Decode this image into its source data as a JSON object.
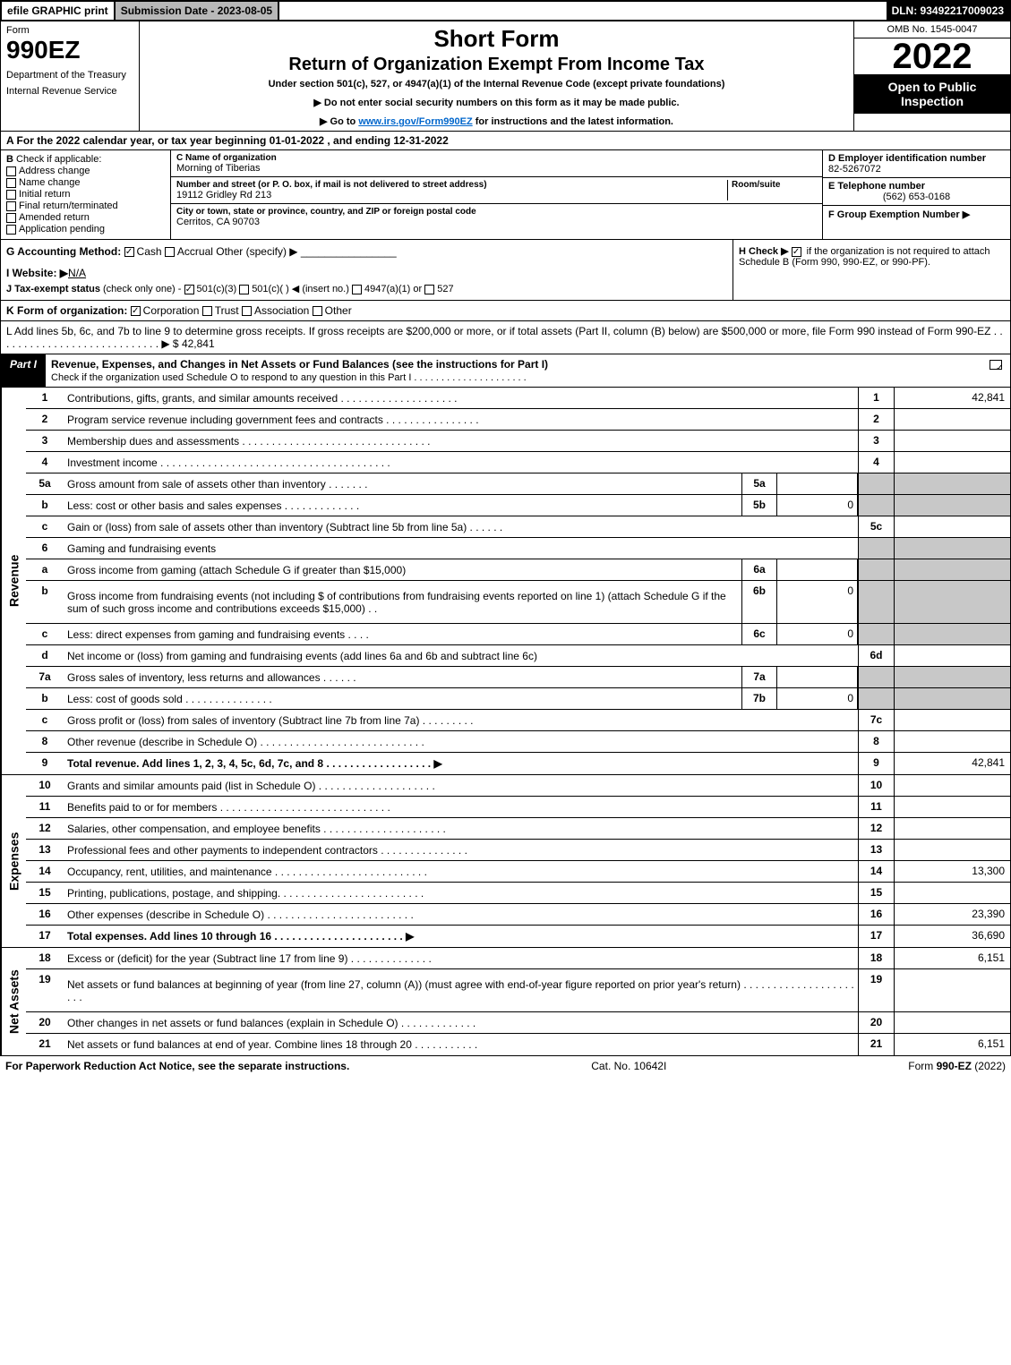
{
  "top": {
    "efile": "efile GRAPHIC print",
    "sub": "Submission Date - 2023-08-05",
    "dln": "DLN: 93492217009023"
  },
  "hdr": {
    "form": "Form",
    "num": "990EZ",
    "dept": "Department of the Treasury",
    "irs": "Internal Revenue Service",
    "title": "Short Form",
    "sub": "Return of Organization Exempt From Income Tax",
    "under": "Under section 501(c), 527, or 4947(a)(1) of the Internal Revenue Code (except private foundations)",
    "note1": "▶ Do not enter social security numbers on this form as it may be made public.",
    "note2": "▶ Go to ",
    "note2link": "www.irs.gov/Form990EZ",
    "note2b": " for instructions and the latest information.",
    "omb": "OMB No. 1545-0047",
    "year": "2022",
    "open": "Open to Public Inspection"
  },
  "A": {
    "text": "A  For the 2022 calendar year, or tax year beginning 01-01-2022 , and ending 12-31-2022"
  },
  "B": {
    "lbl": "B",
    "hdr": "Check if applicable:",
    "opts": [
      "Address change",
      "Name change",
      "Initial return",
      "Final return/terminated",
      "Amended return",
      "Application pending"
    ]
  },
  "C": {
    "nameLbl": "C Name of organization",
    "name": "Morning of Tiberias",
    "addrLbl": "Number and street (or P. O. box, if mail is not delivered to street address)",
    "room": "Room/suite",
    "addr": "19112 Gridley Rd 213",
    "cityLbl": "City or town, state or province, country, and ZIP or foreign postal code",
    "city": "Cerritos, CA  90703"
  },
  "D": {
    "lbl": "D Employer identification number",
    "val": "82-5267072"
  },
  "E": {
    "lbl": "E Telephone number",
    "val": "(562) 653-0168"
  },
  "F": {
    "lbl": "F Group Exemption Number  ▶"
  },
  "G": {
    "lbl": "G Accounting Method:",
    "cash": "Cash",
    "accr": "Accrual",
    "oth": "Other (specify) ▶"
  },
  "H": {
    "txt": "H  Check ▶ ",
    "txt2": " if the organization is not required to attach Schedule B (Form 990, 990-EZ, or 990-PF)."
  },
  "I": {
    "lbl": "I Website: ▶",
    "val": "N/A"
  },
  "J": {
    "lbl": "J Tax-exempt status",
    "txt": "(check only one) - ",
    "o1": "501(c)(3)",
    "o2": "501(c)(   ) ◀ (insert no.)",
    "o3": "4947(a)(1) or",
    "o4": "527"
  },
  "K": {
    "lbl": "K Form of organization:",
    "o1": "Corporation",
    "o2": "Trust",
    "o3": "Association",
    "o4": "Other"
  },
  "L": {
    "txt": "L Add lines 5b, 6c, and 7b to line 9 to determine gross receipts. If gross receipts are $200,000 or more, or if total assets (Part II, column (B) below) are $500,000 or more, file Form 990 instead of Form 990-EZ . . . . . . . . . . . . . . . . . . . . . . . . . . . . ▶ $",
    "val": "42,841"
  },
  "part1": {
    "tag": "Part I",
    "txt": "Revenue, Expenses, and Changes in Net Assets or Fund Balances (see the instructions for Part I)",
    "sub": "Check if the organization used Schedule O to respond to any question in this Part I . . . . . . . . . . . . . . . . . . . . ."
  },
  "rev": [
    {
      "n": "1",
      "d": "Contributions, gifts, grants, and similar amounts received . . . . . . . . . . . . . . . . . . . .",
      "rb": "1",
      "rv": "42,841"
    },
    {
      "n": "2",
      "d": "Program service revenue including government fees and contracts . . . . . . . . . . . . . . . .",
      "rb": "2",
      "rv": ""
    },
    {
      "n": "3",
      "d": "Membership dues and assessments . . . . . . . . . . . . . . . . . . . . . . . . . . . . . . . .",
      "rb": "3",
      "rv": ""
    },
    {
      "n": "4",
      "d": "Investment income . . . . . . . . . . . . . . . . . . . . . . . . . . . . . . . . . . . . . . .",
      "rb": "4",
      "rv": ""
    },
    {
      "n": "5a",
      "d": "Gross amount from sale of assets other than inventory . . . . . . .",
      "mb": "5a",
      "mv": "",
      "rbsh": true,
      "rvsh": true
    },
    {
      "n": "b",
      "d": "Less: cost or other basis and sales expenses . . . . . . . . . . . . .",
      "mb": "5b",
      "mv": "0",
      "rbsh": true,
      "rvsh": true
    },
    {
      "n": "c",
      "d": "Gain or (loss) from sale of assets other than inventory (Subtract line 5b from line 5a) . . . . . .",
      "rb": "5c",
      "rv": ""
    },
    {
      "n": "6",
      "d": "Gaming and fundraising events",
      "rbsh": true,
      "rvsh": true
    },
    {
      "n": "a",
      "d": "Gross income from gaming (attach Schedule G if greater than $15,000)",
      "mb": "6a",
      "mv": "",
      "rbsh": true,
      "rvsh": true
    },
    {
      "n": "b",
      "d": "Gross income from fundraising events (not including $                         of contributions from fundraising events reported on line 1) (attach Schedule G if the sum of such gross income and contributions exceeds $15,000)   .  .",
      "mb": "6b",
      "mv": "0",
      "rbsh": true,
      "rvsh": true,
      "tall": true
    },
    {
      "n": "c",
      "d": "Less: direct expenses from gaming and fundraising events   . . . .",
      "mb": "6c",
      "mv": "0",
      "rbsh": true,
      "rvsh": true
    },
    {
      "n": "d",
      "d": "Net income or (loss) from gaming and fundraising events (add lines 6a and 6b and subtract line 6c)",
      "rb": "6d",
      "rv": ""
    },
    {
      "n": "7a",
      "d": "Gross sales of inventory, less returns and allowances . . . . . .",
      "mb": "7a",
      "mv": "",
      "rbsh": true,
      "rvsh": true
    },
    {
      "n": "b",
      "d": "Less: cost of goods sold          .  .  .  .  .  .  .  .  .  .  .  .  .  .  .",
      "mb": "7b",
      "mv": "0",
      "rbsh": true,
      "rvsh": true
    },
    {
      "n": "c",
      "d": "Gross profit or (loss) from sales of inventory (Subtract line 7b from line 7a) . . . . . . . . .",
      "rb": "7c",
      "rv": ""
    },
    {
      "n": "8",
      "d": "Other revenue (describe in Schedule O) . . . . . . . . . . . . . . . . . . . . . . . . . . . .",
      "rb": "8",
      "rv": ""
    },
    {
      "n": "9",
      "d": "Total revenue. Add lines 1, 2, 3, 4, 5c, 6d, 7c, and 8  . . . . . . . . . . . . . . . . . .   ▶",
      "rb": "9",
      "rv": "42,841",
      "bold": true
    }
  ],
  "exp": [
    {
      "n": "10",
      "d": "Grants and similar amounts paid (list in Schedule O) . . . . . . . . . . . . . . . . . . . .",
      "rb": "10",
      "rv": ""
    },
    {
      "n": "11",
      "d": "Benefits paid to or for members     . . . . . . . . . . . . . . . . . . . . . . . . . . . . .",
      "rb": "11",
      "rv": ""
    },
    {
      "n": "12",
      "d": "Salaries, other compensation, and employee benefits . . . . . . . . . . . . . . . . . . . . .",
      "rb": "12",
      "rv": ""
    },
    {
      "n": "13",
      "d": "Professional fees and other payments to independent contractors . . . . . . . . . . . . . . .",
      "rb": "13",
      "rv": ""
    },
    {
      "n": "14",
      "d": "Occupancy, rent, utilities, and maintenance . . . . . . . . . . . . . . . . . . . . . . . . . .",
      "rb": "14",
      "rv": "13,300"
    },
    {
      "n": "15",
      "d": "Printing, publications, postage, and shipping. . . . . . . . . . . . . . . . . . . . . . . . .",
      "rb": "15",
      "rv": ""
    },
    {
      "n": "16",
      "d": "Other expenses (describe in Schedule O)     . . . . . . . . . . . . . . . . . . . . . . . . .",
      "rb": "16",
      "rv": "23,390"
    },
    {
      "n": "17",
      "d": "Total expenses. Add lines 10 through 16     . . . . . . . . . . . . . . . . . . . . . .   ▶",
      "rb": "17",
      "rv": "36,690",
      "bold": true
    }
  ],
  "net": [
    {
      "n": "18",
      "d": "Excess or (deficit) for the year (Subtract line 17 from line 9)       . . . . . . . . . . . . . .",
      "rb": "18",
      "rv": "6,151"
    },
    {
      "n": "19",
      "d": "Net assets or fund balances at beginning of year (from line 27, column (A)) (must agree with end-of-year figure reported on prior year's return) . . . . . . . . . . . . . . . . . . . . . .",
      "rb": "19",
      "rv": "",
      "tall": true
    },
    {
      "n": "20",
      "d": "Other changes in net assets or fund balances (explain in Schedule O) . . . . . . . . . . . . .",
      "rb": "20",
      "rv": ""
    },
    {
      "n": "21",
      "d": "Net assets or fund balances at end of year. Combine lines 18 through 20 . . . . . . . . . . .",
      "rb": "21",
      "rv": "6,151"
    }
  ],
  "side": {
    "rev": "Revenue",
    "exp": "Expenses",
    "net": "Net Assets"
  },
  "ft": {
    "l": "For Paperwork Reduction Act Notice, see the separate instructions.",
    "c": "Cat. No. 10642I",
    "r": "Form 990-EZ (2022)"
  }
}
